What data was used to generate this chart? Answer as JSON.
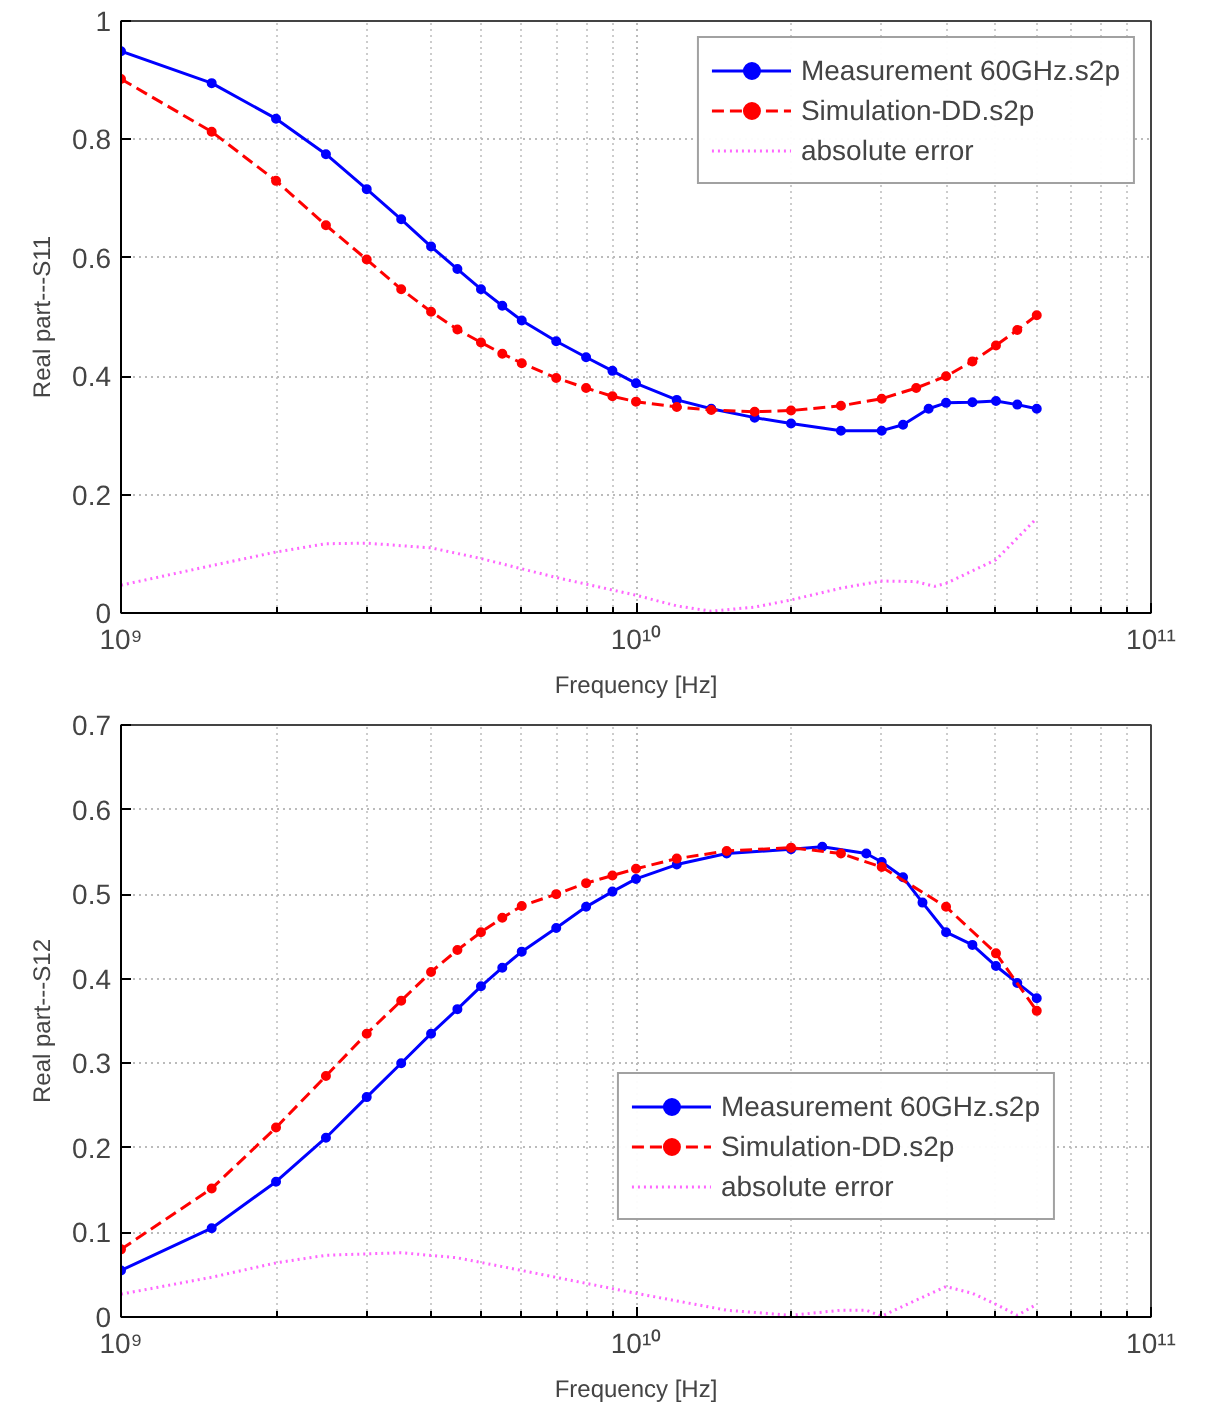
{
  "chart_data": [
    {
      "type": "line",
      "xlabel": "Frequency [Hz]",
      "ylabel": "Real part---S11",
      "log": "x",
      "grid": true,
      "legend": "top right",
      "xlim": [
        1000000000.0,
        100000000000.0
      ],
      "xticks": [
        {
          "value": 1000000000.0,
          "label": "10⁹"
        },
        {
          "value": 10000000000.0,
          "label": "10¹⁰"
        },
        {
          "value": 100000000000.0,
          "label": "10¹¹"
        }
      ],
      "ylim": [
        0,
        1
      ],
      "yticks": [
        0,
        0.2,
        0.4,
        0.6,
        0.8,
        1
      ],
      "series": [
        {
          "name": "Measurement 60GHz.s2p",
          "color": "#0000ff",
          "marker": "circle",
          "line_style": "solid",
          "x": [
            1000000000.0,
            1500000000.0,
            2000000000.0,
            2500000000.0,
            3000000000.0,
            3500000000.0,
            4000000000.0,
            4500000000.0,
            5000000000.0,
            5500000000.0,
            6000000000.0,
            7000000000.0,
            8000000000.0,
            9000000000.0,
            10000000000.0,
            12000000000.0,
            14000000000.0,
            17000000000.0,
            20000000000.0,
            25000000000.0,
            30000000000.0,
            33000000000.0,
            37000000000.0,
            40000000000.0,
            45000000000.0,
            50000000000.0,
            55000000000.0,
            60000000000.0
          ],
          "values": [
            0.949,
            0.895,
            0.835,
            0.775,
            0.716,
            0.665,
            0.619,
            0.581,
            0.547,
            0.519,
            0.494,
            0.459,
            0.432,
            0.409,
            0.388,
            0.36,
            0.345,
            0.33,
            0.32,
            0.308,
            0.308,
            0.318,
            0.345,
            0.355,
            0.356,
            0.358,
            0.352,
            0.345
          ]
        },
        {
          "name": "Simulation-DD.s2p",
          "color": "#ff0000",
          "marker": "circle",
          "line_style": "dashed",
          "x": [
            1000000000.0,
            1500000000.0,
            2000000000.0,
            2500000000.0,
            3000000000.0,
            3500000000.0,
            4000000000.0,
            4500000000.0,
            5000000000.0,
            5500000000.0,
            6000000000.0,
            7000000000.0,
            8000000000.0,
            9000000000.0,
            10000000000.0,
            12000000000.0,
            14000000000.0,
            17000000000.0,
            20000000000.0,
            25000000000.0,
            30000000000.0,
            35000000000.0,
            40000000000.0,
            45000000000.0,
            50000000000.0,
            55000000000.0,
            60000000000.0
          ],
          "values": [
            0.902,
            0.813,
            0.73,
            0.655,
            0.597,
            0.547,
            0.509,
            0.479,
            0.457,
            0.438,
            0.422,
            0.397,
            0.38,
            0.366,
            0.357,
            0.348,
            0.343,
            0.34,
            0.342,
            0.35,
            0.362,
            0.38,
            0.4,
            0.425,
            0.452,
            0.478,
            0.503
          ]
        },
        {
          "name": "absolute error",
          "color": "#ff66ff",
          "marker": "none",
          "line_style": "dotted",
          "x": [
            1000000000.0,
            1500000000.0,
            2000000000.0,
            2500000000.0,
            3000000000.0,
            4000000000.0,
            5000000000.0,
            7000000000.0,
            10000000000.0,
            12000000000.0,
            14000000000.0,
            17000000000.0,
            20000000000.0,
            25000000000.0,
            30000000000.0,
            35000000000.0,
            38000000000.0,
            40000000000.0,
            50000000000.0,
            60000000000.0
          ],
          "values": [
            0.047,
            0.08,
            0.103,
            0.117,
            0.118,
            0.11,
            0.092,
            0.06,
            0.03,
            0.012,
            0.003,
            0.01,
            0.022,
            0.042,
            0.054,
            0.053,
            0.045,
            0.05,
            0.09,
            0.16
          ]
        }
      ]
    },
    {
      "type": "line",
      "xlabel": "Frequency [Hz]",
      "ylabel": "Real part---S12",
      "log": "x",
      "grid": true,
      "legend": "bottom right",
      "xlim": [
        1000000000.0,
        100000000000.0
      ],
      "xticks": [
        {
          "value": 1000000000.0,
          "label": "10⁹"
        },
        {
          "value": 10000000000.0,
          "label": "10¹⁰"
        },
        {
          "value": 100000000000.0,
          "label": "10¹¹"
        }
      ],
      "ylim": [
        0,
        0.7
      ],
      "yticks": [
        0,
        0.1,
        0.2,
        0.3,
        0.4,
        0.5,
        0.6,
        0.7
      ],
      "series": [
        {
          "name": "Measurement 60GHz.s2p",
          "color": "#0000ff",
          "marker": "circle",
          "line_style": "solid",
          "x": [
            1000000000.0,
            1500000000.0,
            2000000000.0,
            2500000000.0,
            3000000000.0,
            3500000000.0,
            4000000000.0,
            4500000000.0,
            5000000000.0,
            5500000000.0,
            6000000000.0,
            7000000000.0,
            8000000000.0,
            9000000000.0,
            10000000000.0,
            12000000000.0,
            15000000000.0,
            20000000000.0,
            23000000000.0,
            28000000000.0,
            30000000000.0,
            33000000000.0,
            36000000000.0,
            40000000000.0,
            45000000000.0,
            50000000000.0,
            55000000000.0,
            60000000000.0
          ],
          "values": [
            0.055,
            0.105,
            0.16,
            0.212,
            0.26,
            0.3,
            0.335,
            0.364,
            0.391,
            0.413,
            0.432,
            0.46,
            0.485,
            0.503,
            0.518,
            0.535,
            0.548,
            0.553,
            0.556,
            0.548,
            0.538,
            0.52,
            0.49,
            0.455,
            0.44,
            0.415,
            0.395,
            0.377
          ]
        },
        {
          "name": "Simulation-DD.s2p",
          "color": "#ff0000",
          "marker": "circle",
          "line_style": "dashed",
          "x": [
            1000000000.0,
            1500000000.0,
            2000000000.0,
            2500000000.0,
            3000000000.0,
            3500000000.0,
            4000000000.0,
            4500000000.0,
            5000000000.0,
            5500000000.0,
            6000000000.0,
            7000000000.0,
            8000000000.0,
            9000000000.0,
            10000000000.0,
            12000000000.0,
            15000000000.0,
            20000000000.0,
            25000000000.0,
            30000000000.0,
            40000000000.0,
            50000000000.0,
            60000000000.0
          ],
          "values": [
            0.08,
            0.152,
            0.224,
            0.285,
            0.335,
            0.374,
            0.408,
            0.434,
            0.455,
            0.472,
            0.486,
            0.5,
            0.513,
            0.522,
            0.53,
            0.542,
            0.551,
            0.555,
            0.548,
            0.532,
            0.485,
            0.43,
            0.362
          ]
        },
        {
          "name": "absolute error",
          "color": "#ff66ff",
          "marker": "none",
          "line_style": "dotted",
          "x": [
            1000000000.0,
            1500000000.0,
            2000000000.0,
            2500000000.0,
            3500000000.0,
            4500000000.0,
            6000000000.0,
            10000000000.0,
            15000000000.0,
            20000000000.0,
            25000000000.0,
            28000000000.0,
            30000000000.0,
            35000000000.0,
            40000000000.0,
            45000000000.0,
            50000000000.0,
            55000000000.0,
            60000000000.0
          ],
          "values": [
            0.027,
            0.047,
            0.064,
            0.073,
            0.076,
            0.07,
            0.055,
            0.028,
            0.008,
            0.002,
            0.008,
            0.008,
            0.001,
            0.02,
            0.036,
            0.028,
            0.015,
            0.002,
            0.015
          ]
        }
      ]
    }
  ]
}
